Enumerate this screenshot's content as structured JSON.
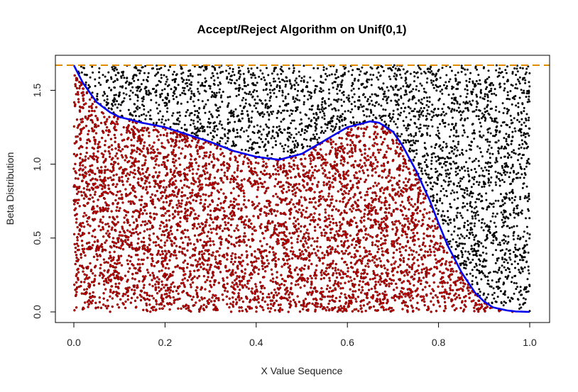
{
  "chart_data": {
    "type": "scatter",
    "title": "Accept/Reject Algorithm on Unif(0,1)",
    "xlabel": "X Value Sequence",
    "ylabel": "Beta Distribution",
    "xlim": [
      0,
      1
    ],
    "ylim": [
      0,
      1.67
    ],
    "x_ticks": [
      0.0,
      0.2,
      0.4,
      0.6,
      0.8,
      1.0
    ],
    "x_tick_labels": [
      "0.0",
      "0.2",
      "0.4",
      "0.6",
      "0.8",
      "1.0"
    ],
    "y_ticks": [
      0.0,
      0.5,
      1.0,
      1.5
    ],
    "y_tick_labels": [
      "0.0",
      "0.5",
      "1.0",
      "1.5"
    ],
    "grid": false,
    "legend": "none",
    "density_curve": {
      "color": "#0000ee",
      "x": [
        0.0,
        0.02,
        0.05,
        0.08,
        0.1,
        0.15,
        0.2,
        0.25,
        0.3,
        0.35,
        0.4,
        0.45,
        0.5,
        0.55,
        0.6,
        0.65,
        0.67,
        0.7,
        0.72,
        0.75,
        0.78,
        0.8,
        0.82,
        0.85,
        0.88,
        0.9,
        0.92,
        0.95,
        0.97,
        1.0
      ],
      "y": [
        1.67,
        1.55,
        1.42,
        1.35,
        1.32,
        1.28,
        1.25,
        1.2,
        1.15,
        1.09,
        1.05,
        1.03,
        1.07,
        1.16,
        1.25,
        1.29,
        1.28,
        1.22,
        1.13,
        0.96,
        0.76,
        0.6,
        0.45,
        0.27,
        0.13,
        0.07,
        0.03,
        0.01,
        0.003,
        0.0
      ]
    },
    "envelope_line": {
      "y": 1.67,
      "color": "#e08a00",
      "style": "dashed"
    },
    "series": [
      {
        "type": "accepted",
        "color": "#cc0000",
        "edge_color": "#550000",
        "count": 5000
      },
      {
        "type": "rejected",
        "color": "#000000",
        "count": 3000
      }
    ]
  }
}
